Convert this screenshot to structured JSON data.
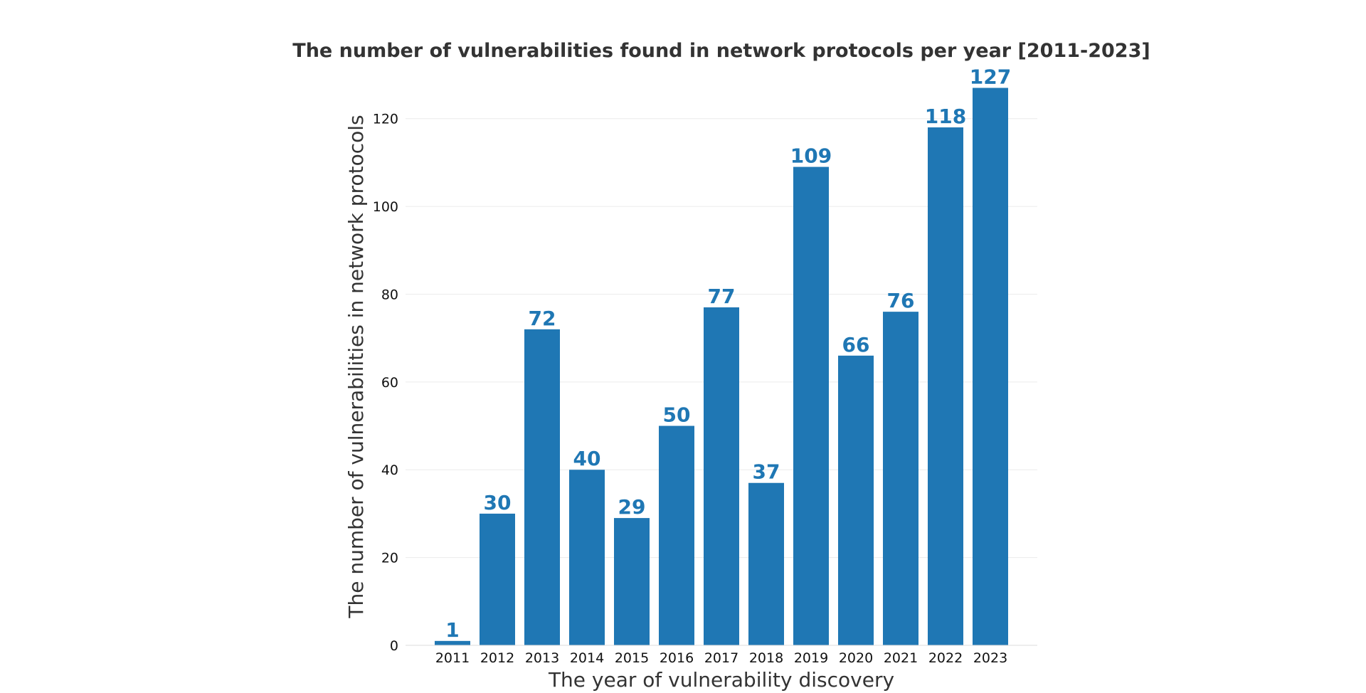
{
  "chart_data": {
    "type": "bar",
    "title": "The number of vulnerabilities found in network protocols per year [2011-2023]",
    "xlabel": "The year of vulnerability discovery",
    "ylabel": "The number of vulnerabilities in network protocols",
    "categories": [
      "2011",
      "2012",
      "2013",
      "2014",
      "2015",
      "2016",
      "2017",
      "2018",
      "2019",
      "2020",
      "2021",
      "2022",
      "2023"
    ],
    "values": [
      1,
      30,
      72,
      40,
      29,
      50,
      77,
      37,
      109,
      66,
      76,
      118,
      127
    ],
    "data_labels": [
      "1",
      "30",
      "72",
      "40",
      "29",
      "50",
      "77",
      "37",
      "109",
      "66",
      "76",
      "118",
      "127"
    ],
    "ylim": [
      0,
      130
    ],
    "yticks": [
      0,
      20,
      40,
      60,
      80,
      100,
      120
    ],
    "ytick_labels": [
      "0",
      "20",
      "40",
      "60",
      "80",
      "100",
      "120"
    ],
    "grid": true,
    "legend": "none",
    "colors": {
      "bar": "#1f77b4",
      "data_label": "#1f77b4"
    }
  }
}
